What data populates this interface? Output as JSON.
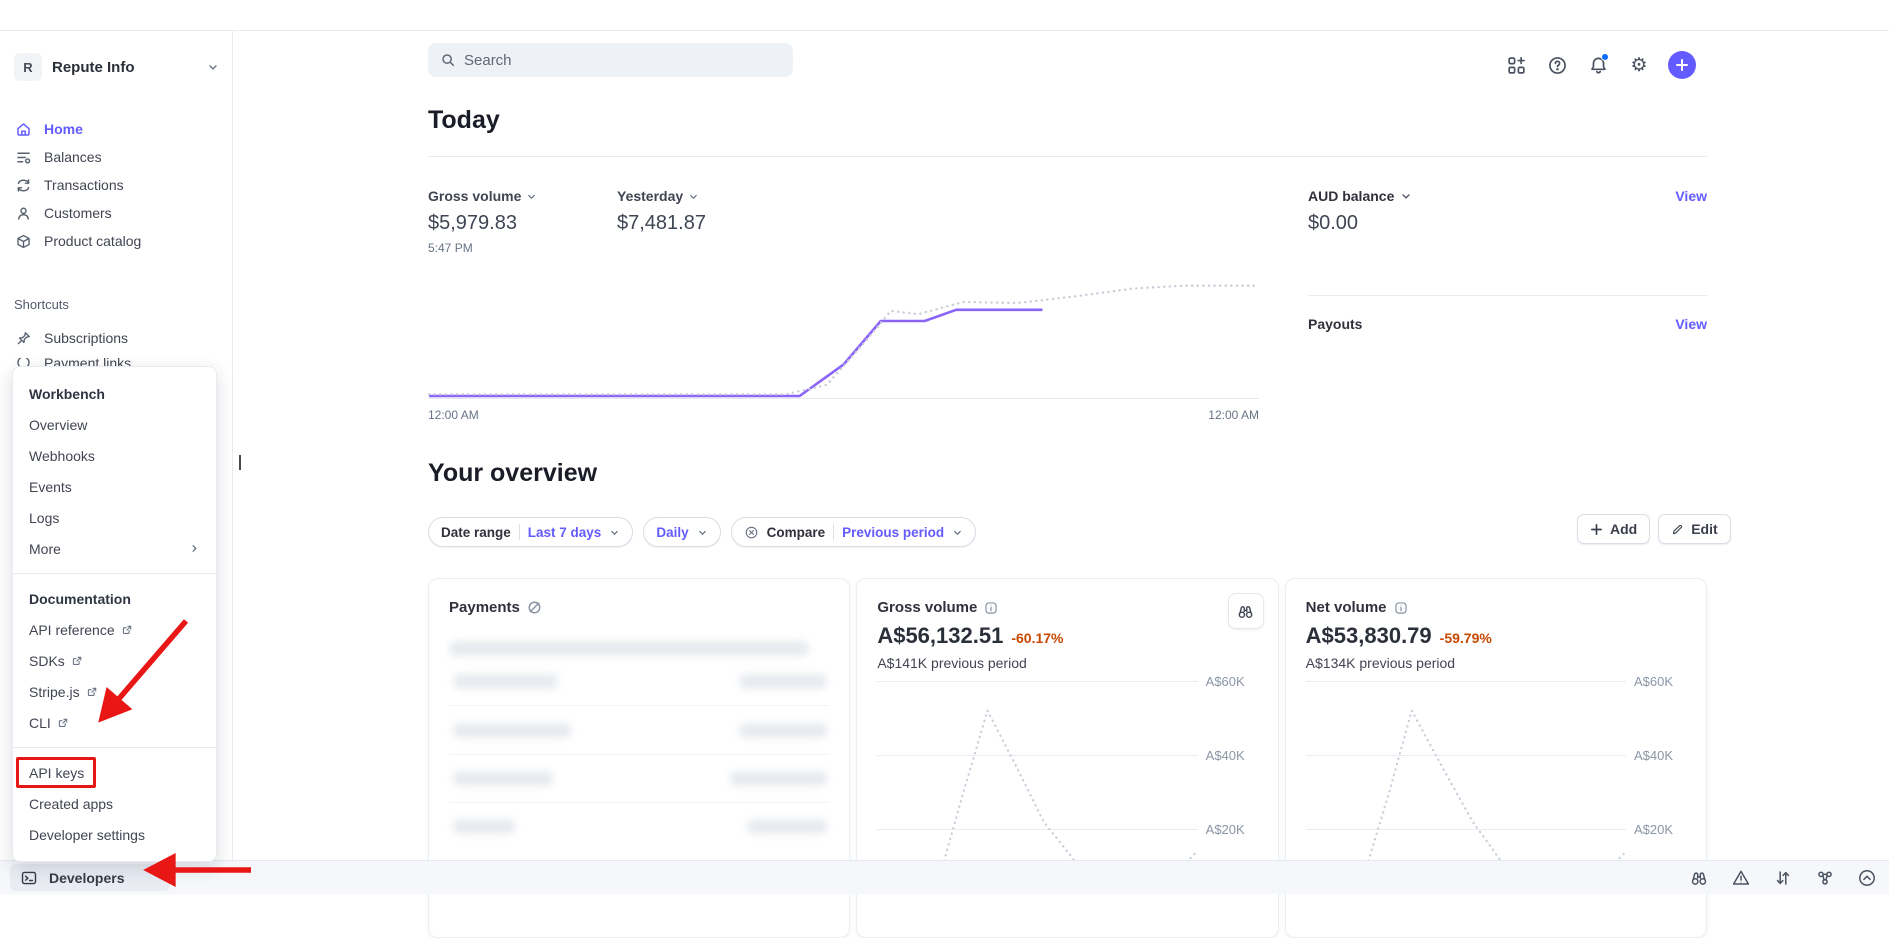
{
  "colors": {
    "accent": "#635bff",
    "negative": "#c84801",
    "annotation_red": "#e91616",
    "chart_purple": "#8a63f9",
    "chart_gray": "#c6cbd5"
  },
  "sidebar": {
    "account": {
      "initial": "R",
      "name": "Repute Info"
    },
    "nav": [
      {
        "label": "Home",
        "icon": "home-icon",
        "active": true
      },
      {
        "label": "Balances",
        "icon": "balances-icon",
        "active": false
      },
      {
        "label": "Transactions",
        "icon": "transactions-icon",
        "active": false
      },
      {
        "label": "Customers",
        "icon": "customers-icon",
        "active": false
      },
      {
        "label": "Product catalog",
        "icon": "product-catalog-icon",
        "active": false
      }
    ],
    "shortcuts_label": "Shortcuts",
    "shortcuts": [
      {
        "label": "Subscriptions",
        "icon": "pin-icon"
      }
    ],
    "partial_item_label": "Payment links",
    "developers_label": "Developers"
  },
  "popup": {
    "sections": [
      {
        "header": "Workbench",
        "items": [
          {
            "label": "Overview"
          },
          {
            "label": "Webhooks"
          },
          {
            "label": "Events"
          },
          {
            "label": "Logs"
          },
          {
            "label": "More"
          }
        ]
      },
      {
        "header": "Documentation",
        "items": [
          {
            "label": "API reference"
          },
          {
            "label": "SDKs"
          },
          {
            "label": "Stripe.js"
          },
          {
            "label": "CLI"
          }
        ]
      },
      {
        "items": [
          {
            "label": "API keys"
          },
          {
            "label": "Created apps"
          },
          {
            "label": "Developer settings"
          }
        ]
      }
    ]
  },
  "header": {
    "search_placeholder": "Search"
  },
  "today": {
    "title": "Today",
    "metrics": [
      {
        "label": "Gross volume",
        "value": "$5,979.83",
        "sub": "5:47 PM"
      },
      {
        "label": "Yesterday",
        "value": "$7,481.87"
      }
    ],
    "balance": {
      "label": "AUD balance",
      "value": "$0.00",
      "view": "View"
    },
    "payouts": {
      "label": "Payouts",
      "view": "View"
    },
    "x_left": "12:00 AM",
    "x_right": "12:00 AM"
  },
  "overview": {
    "title": "Your overview",
    "filters": {
      "date_range_label": "Date range",
      "date_range_value": "Last 7 days",
      "interval": "Daily",
      "compare_label": "Compare",
      "compare_value": "Previous period"
    },
    "add_label": "Add",
    "edit_label": "Edit"
  },
  "cards": {
    "payments": {
      "title": "Payments"
    },
    "gross": {
      "title": "Gross volume",
      "value": "A$56,132.51",
      "delta": "-60.17%",
      "previous": "A$141K previous period"
    },
    "net": {
      "title": "Net volume",
      "value": "A$53,830.79",
      "delta": "-59.79%",
      "previous": "A$134K previous period"
    },
    "y_ticks": [
      "A$60K",
      "A$40K",
      "A$20K"
    ]
  },
  "chart_data": [
    {
      "type": "line",
      "title": "Today gross volume vs yesterday",
      "x_axis": [
        "12:00 AM",
        "12:00 AM"
      ],
      "grid": false,
      "legend": "none",
      "series": [
        {
          "name": "today",
          "style": "solid",
          "color": "#8a63f9",
          "points": [
            [
              0,
              0
            ],
            [
              0.447,
              0
            ],
            [
              0.5,
              0.28
            ],
            [
              0.545,
              0.67
            ],
            [
              0.598,
              0.67
            ],
            [
              0.636,
              0.77
            ],
            [
              0.74,
              0.77
            ]
          ]
        },
        {
          "name": "yesterday",
          "style": "dotted",
          "color": "#c6cbd5",
          "points": [
            [
              0,
              0.015
            ],
            [
              0.43,
              0.015
            ],
            [
              0.48,
              0.1
            ],
            [
              0.53,
              0.52
            ],
            [
              0.557,
              0.76
            ],
            [
              0.59,
              0.73
            ],
            [
              0.645,
              0.84
            ],
            [
              0.71,
              0.83
            ],
            [
              0.78,
              0.89
            ],
            [
              0.85,
              0.96
            ],
            [
              0.91,
              0.985
            ],
            [
              1,
              0.985
            ]
          ]
        }
      ]
    },
    {
      "type": "line",
      "title": "Gross volume last 7 days vs previous period",
      "ylabel": "A$",
      "y_gridlines_k": [
        60,
        40,
        20
      ],
      "legend": "none",
      "series": [
        {
          "name": "previous period",
          "style": "dotted",
          "color": "#c9ced8",
          "points_k": [
            [
              0.205,
              10
            ],
            [
              0.27,
              30
            ],
            [
              0.345,
              52
            ],
            [
              0.44,
              36
            ],
            [
              0.52,
              22
            ],
            [
              0.63,
              10
            ]
          ]
        },
        {
          "name": "previous period edge",
          "style": "dotted",
          "color": "#c9ced8",
          "points_k": [
            [
              0.955,
              10
            ],
            [
              1.0,
              14
            ]
          ]
        }
      ]
    },
    {
      "type": "line",
      "title": "Net volume last 7 days vs previous period",
      "ylabel": "A$",
      "y_gridlines_k": [
        60,
        40,
        20
      ],
      "legend": "none",
      "series": [
        {
          "name": "previous period",
          "style": "dotted",
          "color": "#c9ced8",
          "points_k": [
            [
              0.19,
              10
            ],
            [
              0.26,
              30
            ],
            [
              0.33,
              52
            ],
            [
              0.43,
              36
            ],
            [
              0.52,
              22
            ],
            [
              0.62,
              10
            ]
          ]
        },
        {
          "name": "previous period edge",
          "style": "dotted",
          "color": "#c9ced8",
          "points_k": [
            [
              0.955,
              10
            ],
            [
              1.0,
              14
            ]
          ]
        }
      ]
    }
  ]
}
